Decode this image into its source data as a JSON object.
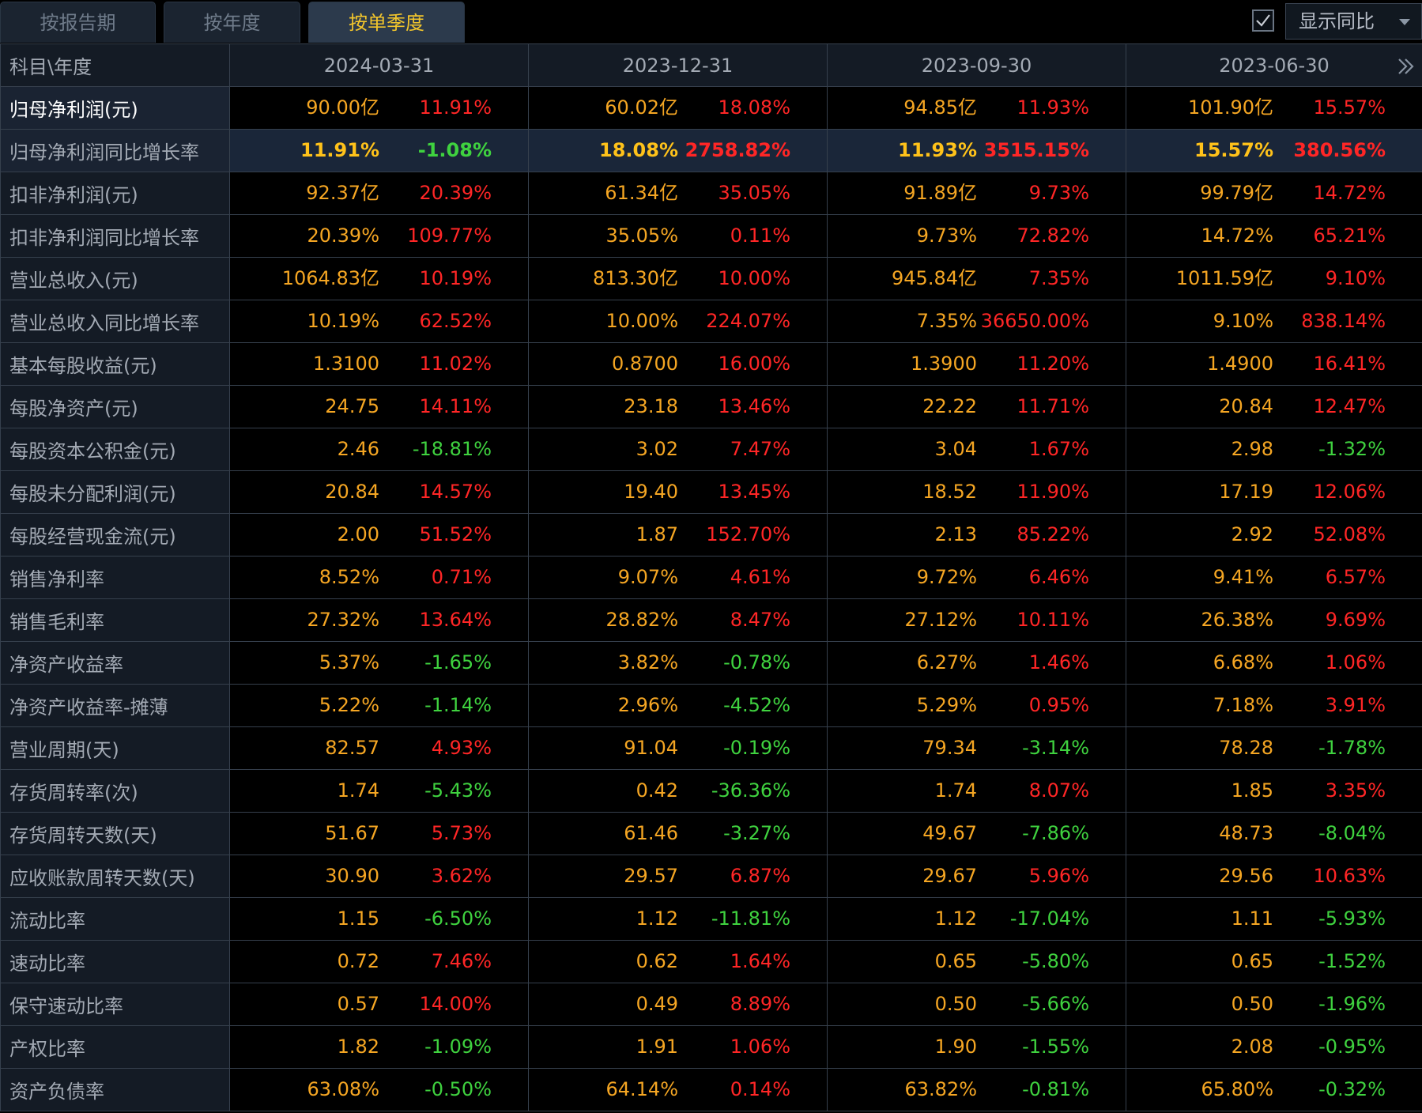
{
  "tabs": [
    {
      "label": "按报告期"
    },
    {
      "label": "按年度"
    },
    {
      "label": "按单季度"
    }
  ],
  "compare": {
    "label": "显示同比",
    "checked": true
  },
  "header": {
    "corner": "科目\\年度",
    "periods": [
      "2024-03-31",
      "2023-12-31",
      "2023-09-30",
      "2023-06-30"
    ]
  },
  "colors": {
    "value": "#f5a623",
    "up": "#ff2626",
    "down": "#3fd23f"
  },
  "rows": [
    {
      "label": "归母净利润(元)",
      "cells": [
        [
          "90.00亿",
          "11.91%",
          "up"
        ],
        [
          "60.02亿",
          "18.08%",
          "up"
        ],
        [
          "94.85亿",
          "11.93%",
          "up"
        ],
        [
          "101.90亿",
          "15.57%",
          "up"
        ]
      ]
    },
    {
      "label": "归母净利润同比增长率",
      "cells": [
        [
          "11.91%",
          "-1.08%",
          "down"
        ],
        [
          "18.08%",
          "2758.82%",
          "up"
        ],
        [
          "11.93%",
          "3515.15%",
          "up"
        ],
        [
          "15.57%",
          "380.56%",
          "up"
        ]
      ]
    },
    {
      "label": "扣非净利润(元)",
      "cells": [
        [
          "92.37亿",
          "20.39%",
          "up"
        ],
        [
          "61.34亿",
          "35.05%",
          "up"
        ],
        [
          "91.89亿",
          "9.73%",
          "up"
        ],
        [
          "99.79亿",
          "14.72%",
          "up"
        ]
      ]
    },
    {
      "label": "扣非净利润同比增长率",
      "cells": [
        [
          "20.39%",
          "109.77%",
          "up"
        ],
        [
          "35.05%",
          "0.11%",
          "up"
        ],
        [
          "9.73%",
          "72.82%",
          "up"
        ],
        [
          "14.72%",
          "65.21%",
          "up"
        ]
      ]
    },
    {
      "label": "营业总收入(元)",
      "cells": [
        [
          "1064.83亿",
          "10.19%",
          "up"
        ],
        [
          "813.30亿",
          "10.00%",
          "up"
        ],
        [
          "945.84亿",
          "7.35%",
          "up"
        ],
        [
          "1011.59亿",
          "9.10%",
          "up"
        ]
      ]
    },
    {
      "label": "营业总收入同比增长率",
      "cells": [
        [
          "10.19%",
          "62.52%",
          "up"
        ],
        [
          "10.00%",
          "224.07%",
          "up"
        ],
        [
          "7.35%",
          "36650.00%",
          "up"
        ],
        [
          "9.10%",
          "838.14%",
          "up"
        ]
      ]
    },
    {
      "label": "基本每股收益(元)",
      "cells": [
        [
          "1.3100",
          "11.02%",
          "up"
        ],
        [
          "0.8700",
          "16.00%",
          "up"
        ],
        [
          "1.3900",
          "11.20%",
          "up"
        ],
        [
          "1.4900",
          "16.41%",
          "up"
        ]
      ]
    },
    {
      "label": "每股净资产(元)",
      "cells": [
        [
          "24.75",
          "14.11%",
          "up"
        ],
        [
          "23.18",
          "13.46%",
          "up"
        ],
        [
          "22.22",
          "11.71%",
          "up"
        ],
        [
          "20.84",
          "12.47%",
          "up"
        ]
      ]
    },
    {
      "label": "每股资本公积金(元)",
      "cells": [
        [
          "2.46",
          "-18.81%",
          "down"
        ],
        [
          "3.02",
          "7.47%",
          "up"
        ],
        [
          "3.04",
          "1.67%",
          "up"
        ],
        [
          "2.98",
          "-1.32%",
          "down"
        ]
      ]
    },
    {
      "label": "每股未分配利润(元)",
      "cells": [
        [
          "20.84",
          "14.57%",
          "up"
        ],
        [
          "19.40",
          "13.45%",
          "up"
        ],
        [
          "18.52",
          "11.90%",
          "up"
        ],
        [
          "17.19",
          "12.06%",
          "up"
        ]
      ]
    },
    {
      "label": "每股经营现金流(元)",
      "cells": [
        [
          "2.00",
          "51.52%",
          "up"
        ],
        [
          "1.87",
          "152.70%",
          "up"
        ],
        [
          "2.13",
          "85.22%",
          "up"
        ],
        [
          "2.92",
          "52.08%",
          "up"
        ]
      ]
    },
    {
      "label": "销售净利率",
      "cells": [
        [
          "8.52%",
          "0.71%",
          "up"
        ],
        [
          "9.07%",
          "4.61%",
          "up"
        ],
        [
          "9.72%",
          "6.46%",
          "up"
        ],
        [
          "9.41%",
          "6.57%",
          "up"
        ]
      ]
    },
    {
      "label": "销售毛利率",
      "cells": [
        [
          "27.32%",
          "13.64%",
          "up"
        ],
        [
          "28.82%",
          "8.47%",
          "up"
        ],
        [
          "27.12%",
          "10.11%",
          "up"
        ],
        [
          "26.38%",
          "9.69%",
          "up"
        ]
      ]
    },
    {
      "label": "净资产收益率",
      "cells": [
        [
          "5.37%",
          "-1.65%",
          "down"
        ],
        [
          "3.82%",
          "-0.78%",
          "down"
        ],
        [
          "6.27%",
          "1.46%",
          "up"
        ],
        [
          "6.68%",
          "1.06%",
          "up"
        ]
      ]
    },
    {
      "label": "净资产收益率-摊薄",
      "cells": [
        [
          "5.22%",
          "-1.14%",
          "down"
        ],
        [
          "2.96%",
          "-4.52%",
          "down"
        ],
        [
          "5.29%",
          "0.95%",
          "up"
        ],
        [
          "7.18%",
          "3.91%",
          "up"
        ]
      ]
    },
    {
      "label": "营业周期(天)",
      "cells": [
        [
          "82.57",
          "4.93%",
          "up"
        ],
        [
          "91.04",
          "-0.19%",
          "down"
        ],
        [
          "79.34",
          "-3.14%",
          "down"
        ],
        [
          "78.28",
          "-1.78%",
          "down"
        ]
      ]
    },
    {
      "label": "存货周转率(次)",
      "cells": [
        [
          "1.74",
          "-5.43%",
          "down"
        ],
        [
          "0.42",
          "-36.36%",
          "down"
        ],
        [
          "1.74",
          "8.07%",
          "up"
        ],
        [
          "1.85",
          "3.35%",
          "up"
        ]
      ]
    },
    {
      "label": "存货周转天数(天)",
      "cells": [
        [
          "51.67",
          "5.73%",
          "up"
        ],
        [
          "61.46",
          "-3.27%",
          "down"
        ],
        [
          "49.67",
          "-7.86%",
          "down"
        ],
        [
          "48.73",
          "-8.04%",
          "down"
        ]
      ]
    },
    {
      "label": "应收账款周转天数(天)",
      "cells": [
        [
          "30.90",
          "3.62%",
          "up"
        ],
        [
          "29.57",
          "6.87%",
          "up"
        ],
        [
          "29.67",
          "5.96%",
          "up"
        ],
        [
          "29.56",
          "10.63%",
          "up"
        ]
      ]
    },
    {
      "label": "流动比率",
      "cells": [
        [
          "1.15",
          "-6.50%",
          "down"
        ],
        [
          "1.12",
          "-11.81%",
          "down"
        ],
        [
          "1.12",
          "-17.04%",
          "down"
        ],
        [
          "1.11",
          "-5.93%",
          "down"
        ]
      ]
    },
    {
      "label": "速动比率",
      "cells": [
        [
          "0.72",
          "7.46%",
          "up"
        ],
        [
          "0.62",
          "1.64%",
          "up"
        ],
        [
          "0.65",
          "-5.80%",
          "down"
        ],
        [
          "0.65",
          "-1.52%",
          "down"
        ]
      ]
    },
    {
      "label": "保守速动比率",
      "cells": [
        [
          "0.57",
          "14.00%",
          "up"
        ],
        [
          "0.49",
          "8.89%",
          "up"
        ],
        [
          "0.50",
          "-5.66%",
          "down"
        ],
        [
          "0.50",
          "-1.96%",
          "down"
        ]
      ]
    },
    {
      "label": "产权比率",
      "cells": [
        [
          "1.82",
          "-1.09%",
          "down"
        ],
        [
          "1.91",
          "1.06%",
          "up"
        ],
        [
          "1.90",
          "-1.55%",
          "down"
        ],
        [
          "2.08",
          "-0.95%",
          "down"
        ]
      ]
    },
    {
      "label": "资产负债率",
      "cells": [
        [
          "63.08%",
          "-0.50%",
          "down"
        ],
        [
          "64.14%",
          "0.14%",
          "up"
        ],
        [
          "63.82%",
          "-0.81%",
          "down"
        ],
        [
          "65.80%",
          "-0.32%",
          "down"
        ]
      ]
    }
  ]
}
